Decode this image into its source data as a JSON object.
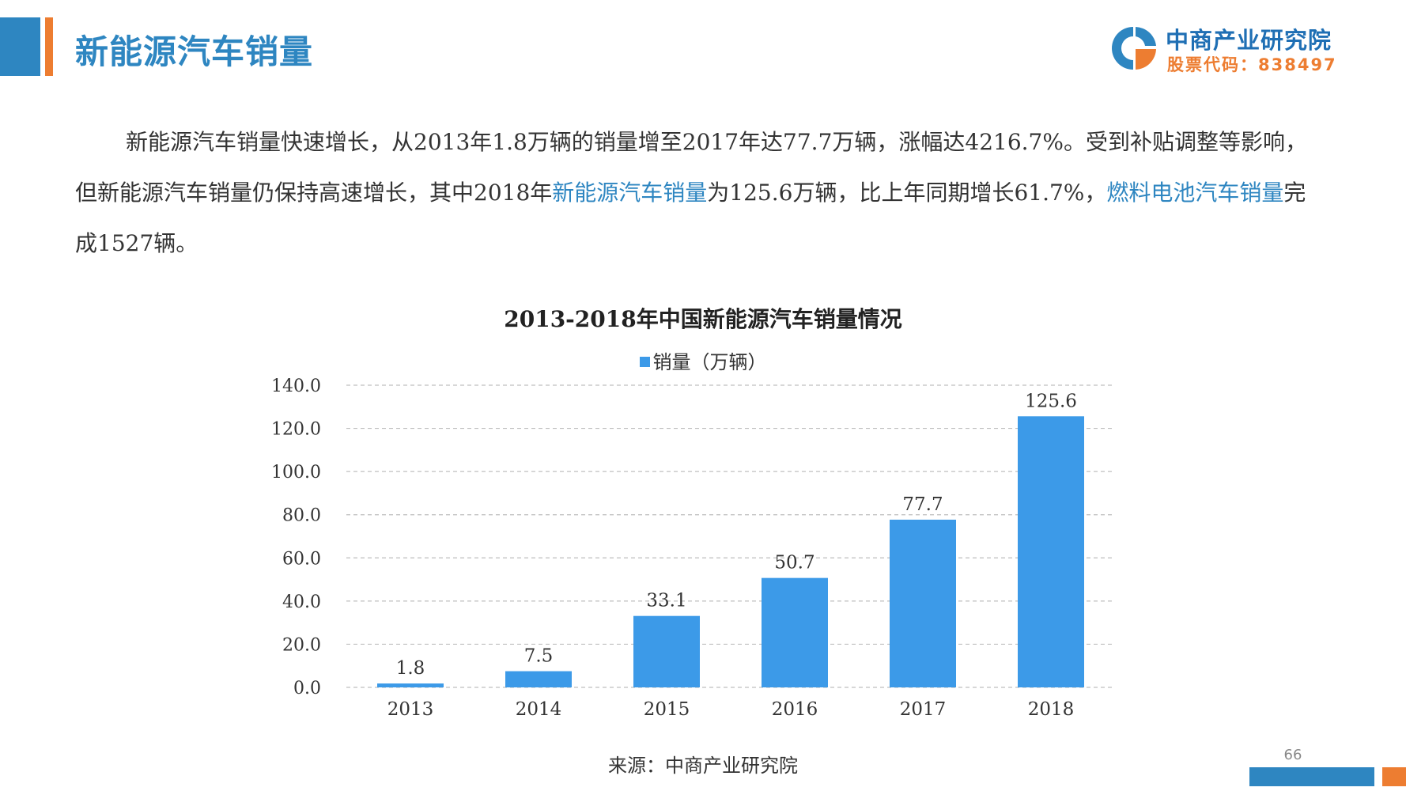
{
  "header": {
    "title": "新能源汽车销量",
    "accent_blue": "#2e86c1",
    "accent_orange": "#ed7d31"
  },
  "logo": {
    "name": "中商产业研究院",
    "stock_code": "股票代码：838497"
  },
  "intro": {
    "part1": "新能源汽车销量快速增长，从2013年1.8万辆的销量增至2017年达77.7万辆，涨幅达4216.7%。受到补贴调整等影响，但新能源汽车销量仍保持高速增长，其中2018年",
    "link1": "新能源汽车销量",
    "part2": "为125.6万辆，比上年同期增长61.7%，",
    "link2": "燃料电池汽车销量",
    "part3": "完成1527辆。"
  },
  "chart_data": {
    "type": "bar",
    "title": "2013-2018年中国新能源汽车销量情况",
    "categories": [
      "2013",
      "2014",
      "2015",
      "2016",
      "2017",
      "2018"
    ],
    "series": [
      {
        "name": "销量（万辆）",
        "values": [
          1.8,
          7.5,
          33.1,
          50.7,
          77.7,
          125.6
        ],
        "color": "#3c9ae8"
      }
    ],
    "data_labels": [
      "1.8",
      "7.5",
      "33.1",
      "50.7",
      "77.7",
      "125.6"
    ],
    "y_ticks": [
      "0.0",
      "20.0",
      "40.0",
      "60.0",
      "80.0",
      "100.0",
      "120.0",
      "140.0"
    ],
    "ylim": [
      0,
      140
    ],
    "grid": true,
    "legend_position": "top-center"
  },
  "footer": {
    "source": "来源：中商产业研究院",
    "page_number": "66"
  }
}
